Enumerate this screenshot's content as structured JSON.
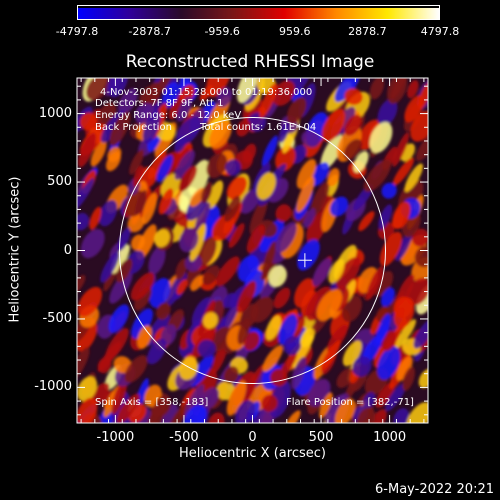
{
  "colorbar": {
    "ticks": [
      "-4797.8",
      "-2878.7",
      "-959.6",
      "959.6",
      "2878.7",
      "4797.8"
    ],
    "stops": [
      "#0000ff",
      "#30009a",
      "#2b0b2a",
      "#7a1717",
      "#e00000",
      "#ff8800",
      "#ffe800",
      "#ffffff"
    ]
  },
  "plot": {
    "title": "Reconstructed RHESSI Image",
    "xlabel": "Heliocentric X (arcsec)",
    "ylabel": "Heliocentric Y (arcsec)",
    "xticks": [
      "-1000",
      "-500",
      "0",
      "500",
      "1000"
    ],
    "yticks": [
      "1000",
      "500",
      "0",
      "-500",
      "-1000"
    ],
    "xlim": [
      -1280,
      1280
    ],
    "ylim": [
      -1260,
      1260
    ]
  },
  "annotations": {
    "time_range": "4-Nov-2003 01:15:28.000 to 01:19:36.000",
    "detectors": "Detectors: 7F 8F 9F, Att 1",
    "energy": "Energy Range: 6.0 - 12.0 keV",
    "method": "Back Projection",
    "counts": "Total counts: 1.61E+04",
    "spin_axis": "Spin Axis = [358,-183]",
    "flare_position": "Flare Position = [382,-71]"
  },
  "solar_disk": {
    "radius_arcsec": 970,
    "center": [
      0,
      0
    ]
  },
  "flare_marker": {
    "x": 382,
    "y": -71
  },
  "footer": {
    "date": "6-May-2022 20:21"
  }
}
